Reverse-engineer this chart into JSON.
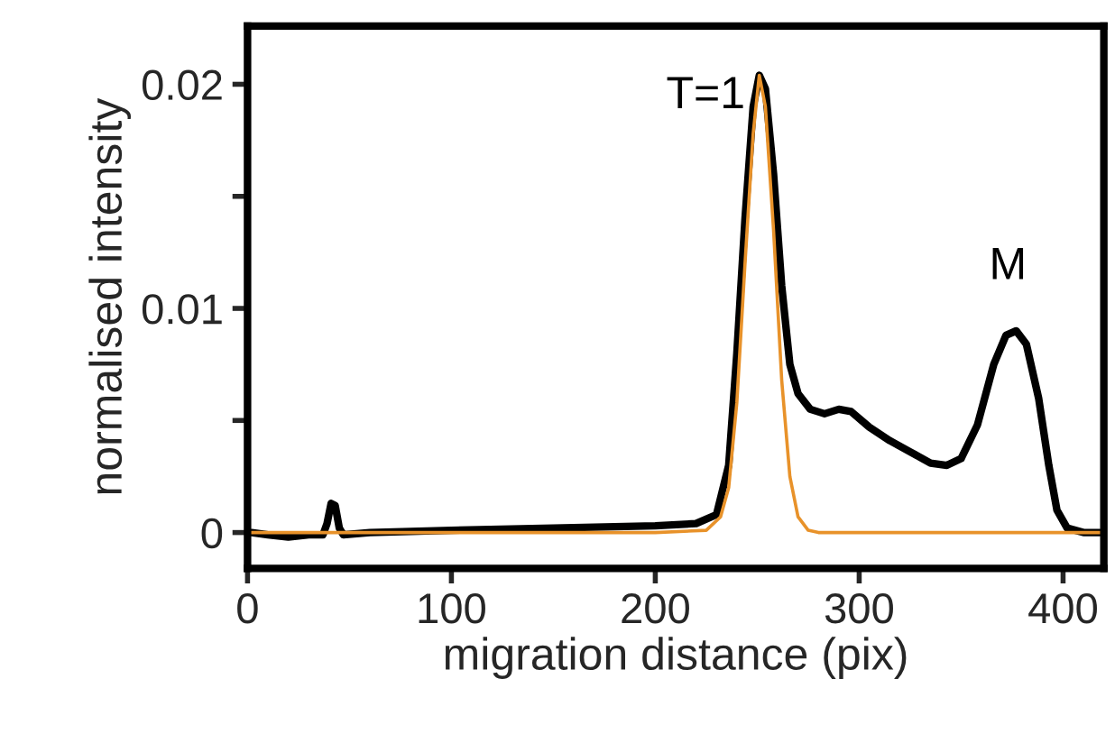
{
  "chart_data": {
    "type": "line",
    "xlabel": "migration distance (pix)",
    "ylabel": "normalised intensity",
    "xlim": [
      0,
      420
    ],
    "xticks": [
      0,
      100,
      200,
      300,
      400
    ],
    "ylim": [
      -0.0016,
      0.0226
    ],
    "yticks": [
      0,
      {
        "value": 0.005,
        "label": null
      },
      0.01,
      {
        "value": 0.015,
        "label": null
      },
      0.02
    ],
    "grid": false,
    "legend": false,
    "marker": "none",
    "line_style": "solid",
    "annotations": [
      "T=1",
      "M"
    ],
    "series": [
      {
        "color": "#000000",
        "x": [
          2,
          10,
          20,
          30,
          37,
          39,
          41,
          43,
          45,
          47,
          60,
          100,
          150,
          200,
          220,
          230,
          236,
          240,
          244,
          248,
          251,
          254,
          258,
          262,
          266,
          270,
          276,
          283,
          290,
          296,
          305,
          315,
          325,
          335,
          343,
          350,
          358,
          366,
          372,
          377,
          382,
          388,
          393,
          397,
          402,
          410,
          418
        ],
        "values": [
          0,
          -0.0001,
          -0.0002,
          -0.0001,
          -0.0001,
          0.0004,
          0.0013,
          0.0012,
          0.0002,
          -0.0001,
          0,
          0.0001,
          0.0002,
          0.0003,
          0.0004,
          0.0008,
          0.003,
          0.008,
          0.014,
          0.019,
          0.0204,
          0.0198,
          0.016,
          0.011,
          0.0075,
          0.0062,
          0.0055,
          0.0053,
          0.0055,
          0.0054,
          0.0047,
          0.0041,
          0.0036,
          0.0031,
          0.003,
          0.0033,
          0.0048,
          0.0075,
          0.0088,
          0.009,
          0.0084,
          0.006,
          0.003,
          0.001,
          0.0002,
          0,
          0
        ]
      },
      {
        "color": "#e8922a",
        "x": [
          0,
          200,
          225,
          232,
          236,
          240,
          244,
          248,
          251,
          254,
          258,
          262,
          266,
          270,
          275,
          280,
          420
        ],
        "values": [
          0,
          0,
          0.0001,
          0.0007,
          0.002,
          0.0058,
          0.012,
          0.0178,
          0.0204,
          0.019,
          0.0135,
          0.0068,
          0.0025,
          0.0007,
          0.0001,
          0,
          0
        ]
      }
    ]
  }
}
